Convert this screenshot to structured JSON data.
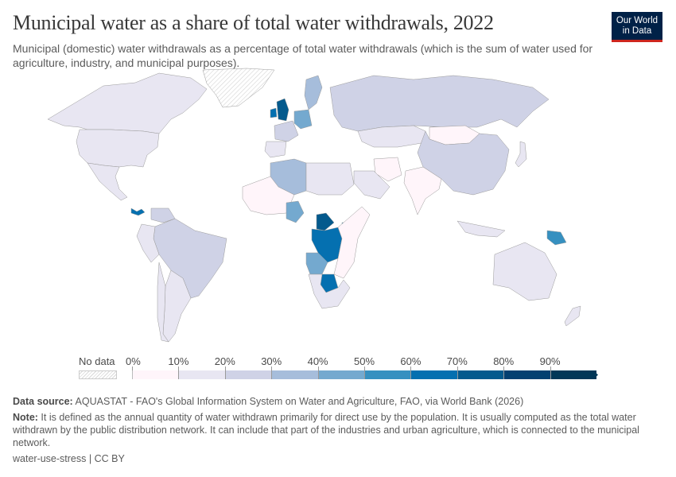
{
  "header": {
    "title": "Municipal water as a share of total water withdrawals, 2022",
    "subtitle": "Municipal (domestic) water withdrawals as a percentage of total water withdrawals (which is the sum of water used for agriculture, industry, and municipal purposes).",
    "logo_line1": "Our World",
    "logo_line2": "in Data"
  },
  "chart_data": {
    "type": "choropleth-map",
    "title": "Municipal water as a share of total water withdrawals, 2022",
    "year": 2022,
    "unit": "%",
    "legend": {
      "no_data_label": "No data",
      "bins": [
        {
          "min": 0,
          "max": 10,
          "color": "#fff5fa"
        },
        {
          "min": 10,
          "max": 20,
          "color": "#e8e6f2"
        },
        {
          "min": 20,
          "max": 30,
          "color": "#cfd2e6"
        },
        {
          "min": 30,
          "max": 40,
          "color": "#a6bddb"
        },
        {
          "min": 40,
          "max": 50,
          "color": "#74a9cf"
        },
        {
          "min": 50,
          "max": 60,
          "color": "#3690c0"
        },
        {
          "min": 60,
          "max": 70,
          "color": "#0570b0"
        },
        {
          "min": 70,
          "max": 80,
          "color": "#045a8d"
        },
        {
          "min": 80,
          "max": 90,
          "color": "#034071"
        },
        {
          "min": 90,
          "max": 100,
          "color": "#023858"
        }
      ],
      "tick_labels": [
        "0%",
        "10%",
        "20%",
        "30%",
        "40%",
        "50%",
        "60%",
        "70%",
        "80%",
        "90%"
      ]
    },
    "regions": [
      {
        "name": "Canada",
        "bin": "10-20%"
      },
      {
        "name": "United States",
        "bin": "10-20%"
      },
      {
        "name": "Mexico",
        "bin": "10-20%"
      },
      {
        "name": "Greenland",
        "bin": "No data"
      },
      {
        "name": "Panama",
        "bin": "60-70%"
      },
      {
        "name": "Brazil",
        "bin": "20-30%"
      },
      {
        "name": "Venezuela",
        "bin": "20-30%"
      },
      {
        "name": "Argentina",
        "bin": "10-20%"
      },
      {
        "name": "Chile",
        "bin": "10-20%"
      },
      {
        "name": "Peru",
        "bin": "10-20%"
      },
      {
        "name": "United Kingdom",
        "bin": "70-80%"
      },
      {
        "name": "Ireland",
        "bin": "60-70%"
      },
      {
        "name": "Germany",
        "bin": "40-50%"
      },
      {
        "name": "France",
        "bin": "20-30%"
      },
      {
        "name": "Spain",
        "bin": "10-20%"
      },
      {
        "name": "Sweden",
        "bin": "30-40%"
      },
      {
        "name": "Russia",
        "bin": "20-30%"
      },
      {
        "name": "China",
        "bin": "20-30%"
      },
      {
        "name": "Mongolia",
        "bin": "0-10%"
      },
      {
        "name": "India",
        "bin": "0-10%"
      },
      {
        "name": "Japan",
        "bin": "10-20%"
      },
      {
        "name": "Algeria",
        "bin": "30-40%"
      },
      {
        "name": "Nigeria",
        "bin": "40-50%"
      },
      {
        "name": "Central African Republic",
        "bin": "70-80%"
      },
      {
        "name": "DR Congo",
        "bin": "60-70%"
      },
      {
        "name": "Angola",
        "bin": "40-50%"
      },
      {
        "name": "Botswana",
        "bin": "60-70%"
      },
      {
        "name": "Uganda",
        "bin": "50-60%"
      },
      {
        "name": "Papua New Guinea",
        "bin": "50-60%"
      },
      {
        "name": "Australia",
        "bin": "10-20%"
      },
      {
        "name": "Indonesia",
        "bin": "10-20%"
      },
      {
        "name": "Saudi Arabia",
        "bin": "10-20%"
      },
      {
        "name": "Iran",
        "bin": "0-10%"
      },
      {
        "name": "Kazakhstan",
        "bin": "10-20%"
      }
    ]
  },
  "legend": {
    "no_data": "No data",
    "ticks": [
      "0%",
      "10%",
      "20%",
      "30%",
      "40%",
      "50%",
      "60%",
      "70%",
      "80%",
      "90%"
    ]
  },
  "footer": {
    "source_label": "Data source:",
    "source_text": " AQUASTAT - FAO's Global Information System on Water and Agriculture, FAO, via World Bank (2026)",
    "note_label": "Note:",
    "note_text": " It is defined as the annual quantity of water withdrawn primarily for direct use by the population. It is usually computed as the total water withdrawn by the public distribution network. It can include that part of the industries and urban agriculture, which is connected to the municipal network.",
    "license": "water-use-stress | CC BY"
  }
}
